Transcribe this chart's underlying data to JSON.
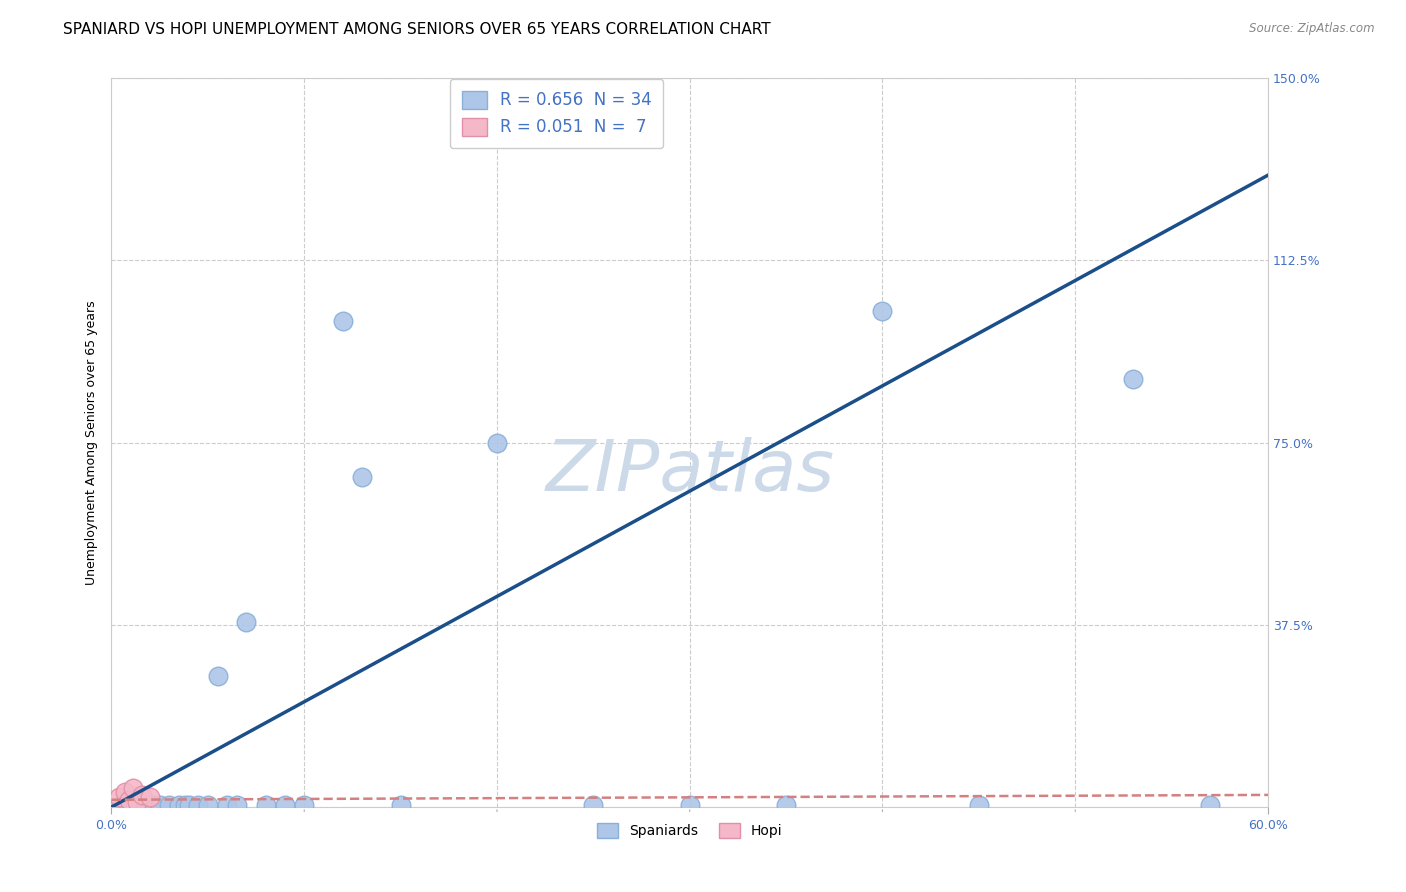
{
  "title": "SPANIARD VS HOPI UNEMPLOYMENT AMONG SENIORS OVER 65 YEARS CORRELATION CHART",
  "source": "Source: ZipAtlas.com",
  "ylabel": "Unemployment Among Seniors over 65 years",
  "xlim": [
    0.0,
    0.6
  ],
  "ylim": [
    0.0,
    1.5
  ],
  "legend_entries": [
    {
      "label": "R = 0.656  N = 34",
      "color": "#aec6e8"
    },
    {
      "label": "R = 0.051  N =  7",
      "color": "#ffb6c1"
    }
  ],
  "legend_bottom": [
    "Spaniards",
    "Hopi"
  ],
  "watermark": "ZIPatlas",
  "spaniards_x": [
    0.005,
    0.008,
    0.01,
    0.012,
    0.015,
    0.016,
    0.018,
    0.02,
    0.022,
    0.025,
    0.03,
    0.035,
    0.038,
    0.04,
    0.045,
    0.05,
    0.055,
    0.06,
    0.065,
    0.07,
    0.08,
    0.09,
    0.1,
    0.12,
    0.13,
    0.15,
    0.2,
    0.25,
    0.3,
    0.35,
    0.4,
    0.45,
    0.53,
    0.57
  ],
  "spaniards_y": [
    0.005,
    0.01,
    0.005,
    0.005,
    0.005,
    0.01,
    0.005,
    0.005,
    0.005,
    0.005,
    0.005,
    0.005,
    0.005,
    0.005,
    0.005,
    0.005,
    0.27,
    0.005,
    0.005,
    0.38,
    0.005,
    0.005,
    0.005,
    1.0,
    0.68,
    0.005,
    0.75,
    0.005,
    0.005,
    0.005,
    1.02,
    0.005,
    0.88,
    0.005
  ],
  "hopi_x": [
    0.004,
    0.007,
    0.009,
    0.011,
    0.013,
    0.016,
    0.02
  ],
  "hopi_y": [
    0.02,
    0.03,
    0.015,
    0.04,
    0.01,
    0.025,
    0.02
  ],
  "blue_line_x": [
    0.0,
    0.6
  ],
  "blue_line_y": [
    0.0,
    1.3
  ],
  "pink_line_x": [
    0.0,
    0.6
  ],
  "pink_line_y": [
    0.015,
    0.025
  ],
  "blue_line_color": "#1b4f8a",
  "pink_line_color": "#d48080",
  "scatter_blue": "#aec6e8",
  "scatter_pink": "#f5b8c8",
  "grid_color": "#cccccc",
  "background_color": "#ffffff",
  "title_fontsize": 11,
  "axis_label_fontsize": 9,
  "tick_fontsize": 9,
  "watermark_color": "#ccd9e8",
  "watermark_fontsize": 52,
  "tick_color": "#4472c4",
  "source_color": "#888888"
}
